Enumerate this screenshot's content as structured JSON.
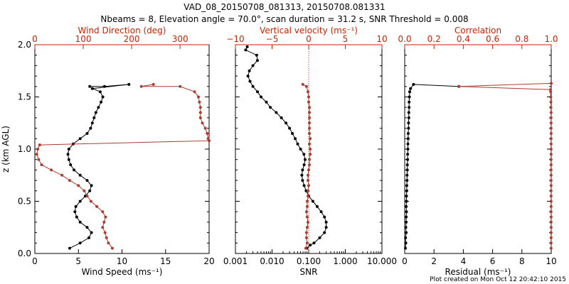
{
  "title_line1": "VAD_08_20150708_081313, 20150708.081331",
  "title_line2": "Nbeams = 8, Elevation angle = 70.0°, scan duration = 31.2 s, SNR Threshold = 0.008",
  "credit": "Plot created on Mon Oct 12 20:42:10 2015",
  "colors": {
    "black_series": "#000000",
    "red_series": "#b03a2e",
    "axis_red": "#cc2200"
  },
  "chart_data": [
    {
      "type": "line",
      "ylabel": "z (km AGL)",
      "ylim": [
        0,
        2.0
      ],
      "yticks": [
        "0.0",
        "0.5",
        "1.0",
        "1.5",
        "2.0"
      ],
      "bottom_axis": {
        "label": "Wind Speed (ms⁻¹)",
        "lim": [
          0,
          20
        ],
        "ticks": [
          "0",
          "5",
          "10",
          "15",
          "20"
        ]
      },
      "top_axis": {
        "label": "Wind Direction (deg)",
        "lim": [
          0,
          360
        ],
        "ticks": [
          "0",
          "100",
          "200",
          "300"
        ]
      },
      "series": [
        {
          "axis": "bottom",
          "color": "black",
          "points": [
            [
              4.0,
              0.05
            ],
            [
              5.2,
              0.1
            ],
            [
              6.2,
              0.15
            ],
            [
              6.5,
              0.2
            ],
            [
              6.0,
              0.25
            ],
            [
              5.2,
              0.3
            ],
            [
              4.8,
              0.35
            ],
            [
              4.6,
              0.4
            ],
            [
              4.7,
              0.45
            ],
            [
              5.2,
              0.5
            ],
            [
              5.8,
              0.55
            ],
            [
              6.3,
              0.6
            ],
            [
              6.5,
              0.65
            ],
            [
              6.0,
              0.7
            ],
            [
              5.2,
              0.75
            ],
            [
              4.5,
              0.8
            ],
            [
              4.1,
              0.85
            ],
            [
              3.9,
              0.9
            ],
            [
              3.8,
              0.95
            ],
            [
              3.9,
              1.0
            ],
            [
              4.4,
              1.05
            ],
            [
              5.2,
              1.1
            ],
            [
              6.0,
              1.15
            ],
            [
              6.4,
              1.2
            ],
            [
              6.6,
              1.25
            ],
            [
              6.8,
              1.3
            ],
            [
              7.0,
              1.35
            ],
            [
              7.3,
              1.4
            ],
            [
              7.6,
              1.45
            ],
            [
              7.8,
              1.5
            ],
            [
              7.5,
              1.55
            ],
            [
              6.6,
              1.58
            ],
            [
              10.8,
              1.62
            ],
            [
              8.0,
              1.6
            ],
            [
              6.3,
              1.6
            ]
          ]
        },
        {
          "axis": "top",
          "color": "red",
          "points": [
            [
              160,
              0.05
            ],
            [
              152,
              0.1
            ],
            [
              148,
              0.15
            ],
            [
              145,
              0.2
            ],
            [
              140,
              0.25
            ],
            [
              143,
              0.3
            ],
            [
              146,
              0.35
            ],
            [
              140,
              0.4
            ],
            [
              128,
              0.45
            ],
            [
              116,
              0.5
            ],
            [
              108,
              0.55
            ],
            [
              102,
              0.6
            ],
            [
              90,
              0.65
            ],
            [
              72,
              0.7
            ],
            [
              56,
              0.75
            ],
            [
              34,
              0.8
            ],
            [
              14,
              0.85
            ],
            [
              8,
              0.9
            ],
            [
              4,
              0.95
            ],
            [
              6,
              1.0
            ],
            [
              10,
              1.04
            ],
            [
              360,
              1.08
            ],
            [
              358,
              1.1
            ],
            [
              356,
              1.15
            ],
            [
              352,
              1.2
            ],
            [
              346,
              1.25
            ],
            [
              342,
              1.3
            ],
            [
              342,
              1.35
            ],
            [
              342,
              1.4
            ],
            [
              340,
              1.45
            ],
            [
              338,
              1.5
            ],
            [
              330,
              1.55
            ],
            [
              300,
              1.6
            ],
            [
              220,
              1.6
            ],
            [
              245,
              1.62
            ]
          ]
        }
      ]
    },
    {
      "type": "line",
      "ylim": [
        0,
        2.0
      ],
      "bottom_axis": {
        "label": "SNR",
        "scale": "log",
        "lim": [
          0.001,
          10
        ],
        "ticks": [
          "0.001",
          "0.010",
          "0.100",
          "1.000",
          "10.000"
        ]
      },
      "top_axis": {
        "label": "Vertical velocity (ms⁻¹)",
        "lim": [
          -10,
          10
        ],
        "ticks": [
          "−10",
          "−5",
          "0",
          "5",
          "10"
        ]
      },
      "reference_line": {
        "axis": "top",
        "value": 0
      },
      "series": [
        {
          "axis": "bottom",
          "color": "black",
          "points": [
            [
              0.09,
              0.05
            ],
            [
              0.11,
              0.08
            ],
            [
              0.14,
              0.1
            ],
            [
              0.2,
              0.15
            ],
            [
              0.27,
              0.2
            ],
            [
              0.3,
              0.25
            ],
            [
              0.3,
              0.3
            ],
            [
              0.27,
              0.35
            ],
            [
              0.22,
              0.4
            ],
            [
              0.17,
              0.45
            ],
            [
              0.13,
              0.5
            ],
            [
              0.1,
              0.55
            ],
            [
              0.085,
              0.6
            ],
            [
              0.075,
              0.65
            ],
            [
              0.068,
              0.7
            ],
            [
              0.065,
              0.75
            ],
            [
              0.068,
              0.8
            ],
            [
              0.075,
              0.85
            ],
            [
              0.08,
              0.9
            ],
            [
              0.074,
              0.95
            ],
            [
              0.06,
              1.0
            ],
            [
              0.05,
              1.05
            ],
            [
              0.043,
              1.1
            ],
            [
              0.036,
              1.15
            ],
            [
              0.03,
              1.2
            ],
            [
              0.024,
              1.25
            ],
            [
              0.018,
              1.3
            ],
            [
              0.013,
              1.35
            ],
            [
              0.009,
              1.4
            ],
            [
              0.007,
              1.45
            ],
            [
              0.005,
              1.5
            ],
            [
              0.004,
              1.55
            ],
            [
              0.003,
              1.6
            ],
            [
              0.0025,
              1.65
            ],
            [
              0.0022,
              1.7
            ],
            [
              0.0024,
              1.75
            ],
            [
              0.003,
              1.8
            ],
            [
              0.004,
              1.85
            ],
            [
              0.0038,
              1.9
            ],
            [
              0.0019,
              1.95
            ],
            [
              0.0021,
              1.98
            ]
          ]
        },
        {
          "axis": "top",
          "color": "red",
          "points": [
            [
              -0.4,
              0.05
            ],
            [
              -0.2,
              0.1
            ],
            [
              -0.3,
              0.15
            ],
            [
              -0.3,
              0.2
            ],
            [
              -0.2,
              0.25
            ],
            [
              -0.1,
              0.3
            ],
            [
              -0.2,
              0.35
            ],
            [
              -0.3,
              0.4
            ],
            [
              -0.2,
              0.45
            ],
            [
              -0.2,
              0.5
            ],
            [
              -0.1,
              0.55
            ],
            [
              -0.1,
              0.6
            ],
            [
              0,
              0.65
            ],
            [
              -0.1,
              0.7
            ],
            [
              -0.1,
              0.75
            ],
            [
              0,
              0.8
            ],
            [
              0.1,
              0.85
            ],
            [
              0.1,
              0.9
            ],
            [
              0.2,
              0.95
            ],
            [
              0.2,
              1.0
            ],
            [
              0.1,
              1.05
            ],
            [
              0.2,
              1.1
            ],
            [
              0.1,
              1.15
            ],
            [
              0.1,
              1.2
            ],
            [
              0.1,
              1.25
            ],
            [
              0.1,
              1.3
            ],
            [
              0.1,
              1.35
            ],
            [
              0.1,
              1.4
            ],
            [
              0,
              1.45
            ],
            [
              0,
              1.5
            ],
            [
              -0.1,
              1.55
            ],
            [
              -0.3,
              1.6
            ],
            [
              -0.8,
              1.62
            ]
          ]
        }
      ]
    },
    {
      "type": "line",
      "ylim": [
        0,
        2.0
      ],
      "bottom_axis": {
        "label": "Residual (ms⁻¹)",
        "lim": [
          0,
          10
        ],
        "ticks": [
          "0",
          "2",
          "4",
          "6",
          "8",
          "10"
        ]
      },
      "top_axis": {
        "label": "Correlation",
        "lim": [
          0,
          1
        ],
        "ticks": [
          "0.0",
          "0.2",
          "0.4",
          "0.6",
          "0.8",
          "1.0"
        ]
      },
      "series": [
        {
          "axis": "bottom",
          "color": "black",
          "points": [
            [
              0.05,
              0.05
            ],
            [
              0.08,
              0.1
            ],
            [
              0.06,
              0.15
            ],
            [
              0.1,
              0.2
            ],
            [
              0.08,
              0.25
            ],
            [
              0.1,
              0.3
            ],
            [
              0.1,
              0.35
            ],
            [
              0.12,
              0.4
            ],
            [
              0.1,
              0.45
            ],
            [
              0.12,
              0.5
            ],
            [
              0.12,
              0.55
            ],
            [
              0.14,
              0.6
            ],
            [
              0.14,
              0.65
            ],
            [
              0.16,
              0.7
            ],
            [
              0.16,
              0.75
            ],
            [
              0.18,
              0.8
            ],
            [
              0.18,
              0.85
            ],
            [
              0.2,
              0.9
            ],
            [
              0.2,
              0.95
            ],
            [
              0.22,
              1.0
            ],
            [
              0.22,
              1.05
            ],
            [
              0.24,
              1.1
            ],
            [
              0.24,
              1.15
            ],
            [
              0.26,
              1.2
            ],
            [
              0.26,
              1.25
            ],
            [
              0.28,
              1.3
            ],
            [
              0.28,
              1.35
            ],
            [
              0.3,
              1.4
            ],
            [
              0.3,
              1.45
            ],
            [
              0.32,
              1.5
            ],
            [
              0.34,
              1.55
            ],
            [
              0.4,
              1.58
            ],
            [
              0.6,
              1.62
            ],
            [
              3.7,
              1.6
            ]
          ]
        },
        {
          "axis": "top",
          "color": "red",
          "points": [
            [
              0.999,
              0.05
            ],
            [
              0.999,
              0.1
            ],
            [
              0.999,
              0.15
            ],
            [
              0.999,
              0.2
            ],
            [
              0.999,
              0.25
            ],
            [
              0.999,
              0.3
            ],
            [
              0.999,
              0.35
            ],
            [
              0.999,
              0.4
            ],
            [
              0.999,
              0.45
            ],
            [
              0.999,
              0.5
            ],
            [
              0.999,
              0.55
            ],
            [
              0.999,
              0.6
            ],
            [
              0.999,
              0.65
            ],
            [
              0.999,
              0.7
            ],
            [
              0.999,
              0.75
            ],
            [
              0.999,
              0.8
            ],
            [
              0.999,
              0.85
            ],
            [
              0.999,
              0.9
            ],
            [
              0.999,
              0.95
            ],
            [
              0.999,
              1.0
            ],
            [
              0.999,
              1.05
            ],
            [
              0.999,
              1.1
            ],
            [
              0.999,
              1.15
            ],
            [
              0.999,
              1.2
            ],
            [
              0.999,
              1.25
            ],
            [
              0.999,
              1.3
            ],
            [
              0.999,
              1.35
            ],
            [
              0.998,
              1.4
            ],
            [
              0.998,
              1.45
            ],
            [
              0.997,
              1.5
            ],
            [
              0.996,
              1.55
            ],
            [
              0.995,
              1.57
            ],
            [
              0.37,
              1.6
            ],
            [
              1.0,
              1.63
            ]
          ]
        }
      ]
    }
  ]
}
